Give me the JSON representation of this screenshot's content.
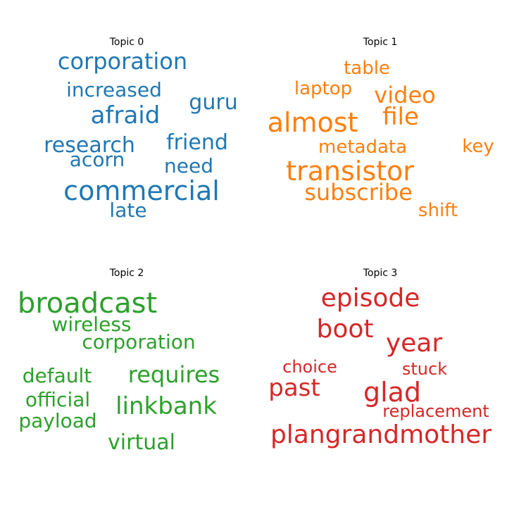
{
  "chart_data": {
    "type": "wordcloud",
    "topics": [
      {
        "title": "Topic 0",
        "color": "#1f77b4",
        "words": [
          "corporation",
          "increased",
          "guru",
          "afraid",
          "research",
          "friend",
          "acorn",
          "need",
          "commercial",
          "late"
        ]
      },
      {
        "title": "Topic 1",
        "color": "#ff7f0e",
        "words": [
          "table",
          "laptop",
          "video",
          "almost",
          "file",
          "metadata",
          "key",
          "transistor",
          "subscribe",
          "shift"
        ]
      },
      {
        "title": "Topic 2",
        "color": "#2ca02c",
        "words": [
          "broadcast",
          "wireless",
          "corporation",
          "default",
          "requires",
          "official",
          "linkbank",
          "payload",
          "virtual"
        ]
      },
      {
        "title": "Topic 3",
        "color": "#d62728",
        "words": [
          "episode",
          "boot",
          "year",
          "choice",
          "stuck",
          "past",
          "glad",
          "replacement",
          "plangrandmother"
        ]
      }
    ]
  }
}
